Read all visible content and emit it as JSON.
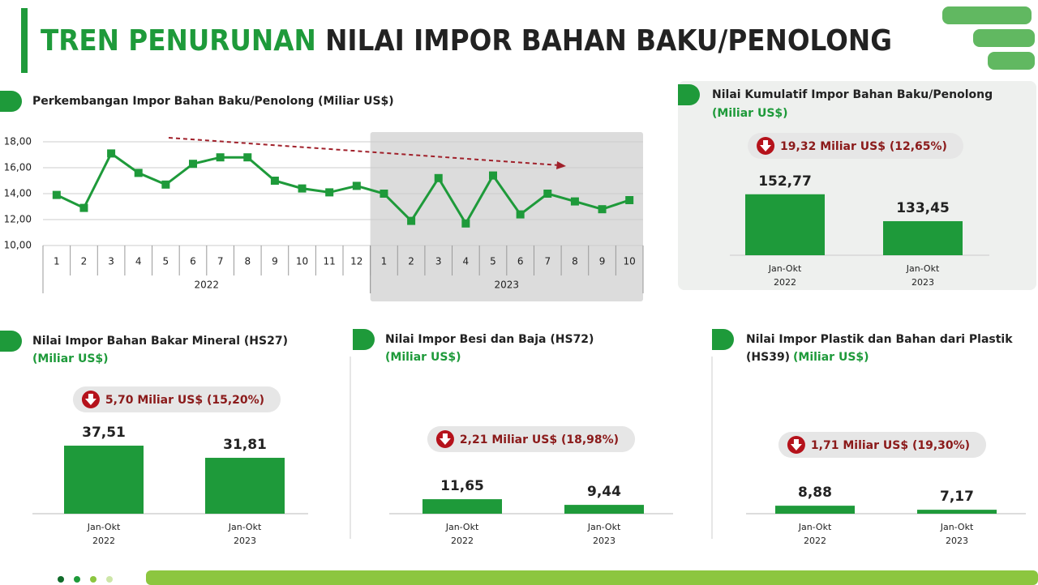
{
  "title": [
    "TREN PENURUNAN",
    "NILAI IMPOR BAHAN BAKU/PENOLONG"
  ],
  "chart_data": [
    {
      "type": "line",
      "title": "Perkembangan Impor Bahan Baku/Penolong (Miliar US$)",
      "groups": [
        {
          "name": "2022",
          "categories": [
            "1",
            "2",
            "3",
            "4",
            "5",
            "6",
            "7",
            "8",
            "9",
            "10",
            "11",
            "12"
          ]
        },
        {
          "name": "2023",
          "categories": [
            "1",
            "2",
            "3",
            "4",
            "5",
            "6",
            "7",
            "8",
            "9",
            "10"
          ]
        }
      ],
      "values": [
        13.9,
        12.9,
        17.1,
        15.6,
        14.7,
        16.3,
        16.8,
        16.8,
        15.0,
        14.4,
        14.1,
        14.6,
        14.0,
        11.9,
        15.2,
        11.7,
        15.4,
        12.4,
        14.0,
        13.4,
        12.8,
        13.5
      ],
      "color": "#1e9a3a",
      "ylim": [
        10,
        18
      ],
      "yticks": [
        {
          "value": 10,
          "label": "10,00"
        },
        {
          "value": 12,
          "label": "12,00"
        },
        {
          "value": 14,
          "label": "14,00"
        },
        {
          "value": 16,
          "label": "16,00"
        },
        {
          "value": 18,
          "label": "18,00"
        }
      ],
      "grid": true
    },
    {
      "type": "bar",
      "title": [
        "Nilai Kumulatif Impor Bahan Baku/Penolong"
      ],
      "subtitle": "(Miliar US$)",
      "annotation": "19,32 Miliar US$ (12,65%)",
      "categories": [
        [
          "Jan-Okt",
          "2022"
        ],
        [
          "Jan-Okt",
          "2023"
        ]
      ],
      "values": [
        152.77,
        133.45
      ],
      "value_labels": [
        "152,77",
        "133,45"
      ],
      "color": "#1e9a3a",
      "ylim": [
        109,
        173
      ]
    },
    {
      "type": "bar",
      "title": [
        "Nilai Impor Bahan Bakar Mineral (HS27)"
      ],
      "subtitle": "(Miliar US$)",
      "annotation": "5,70 Miliar US$ (15,20%)",
      "categories": [
        [
          "Jan-Okt",
          "2022"
        ],
        [
          "Jan-Okt",
          "2023"
        ]
      ],
      "values": [
        37.51,
        31.81
      ],
      "value_labels": [
        "37,51",
        "31,81"
      ],
      "color": "#1e9a3a",
      "ylim": [
        5.6,
        47.4
      ]
    },
    {
      "type": "bar",
      "title": [
        "Nilai Impor Besi dan Baja (HS72)"
      ],
      "subtitle": "(Miliar US$)",
      "annotation": "2,21 Miliar US$ (18,98%)",
      "categories": [
        [
          "Jan-Okt",
          "2022"
        ],
        [
          "Jan-Okt",
          "2023"
        ]
      ],
      "values": [
        11.65,
        9.44
      ],
      "value_labels": [
        "11,65",
        "9,44"
      ],
      "color": "#1e9a3a",
      "ylim": [
        6,
        40.7
      ]
    },
    {
      "type": "bar",
      "title": [
        "Nilai Impor Plastik dan Bahan dari Plastik",
        "(HS39)"
      ],
      "subtitle": "(Miliar US$)",
      "annotation": "1,71 Miliar US$ (19,30%)",
      "categories": [
        [
          "Jan-Okt",
          "2022"
        ],
        [
          "Jan-Okt",
          "2023"
        ]
      ],
      "values": [
        8.88,
        7.17
      ],
      "value_labels": [
        "8,88",
        "7,17"
      ],
      "color": "#1e9a3a",
      "ylim": [
        5.5,
        43.2
      ]
    }
  ]
}
